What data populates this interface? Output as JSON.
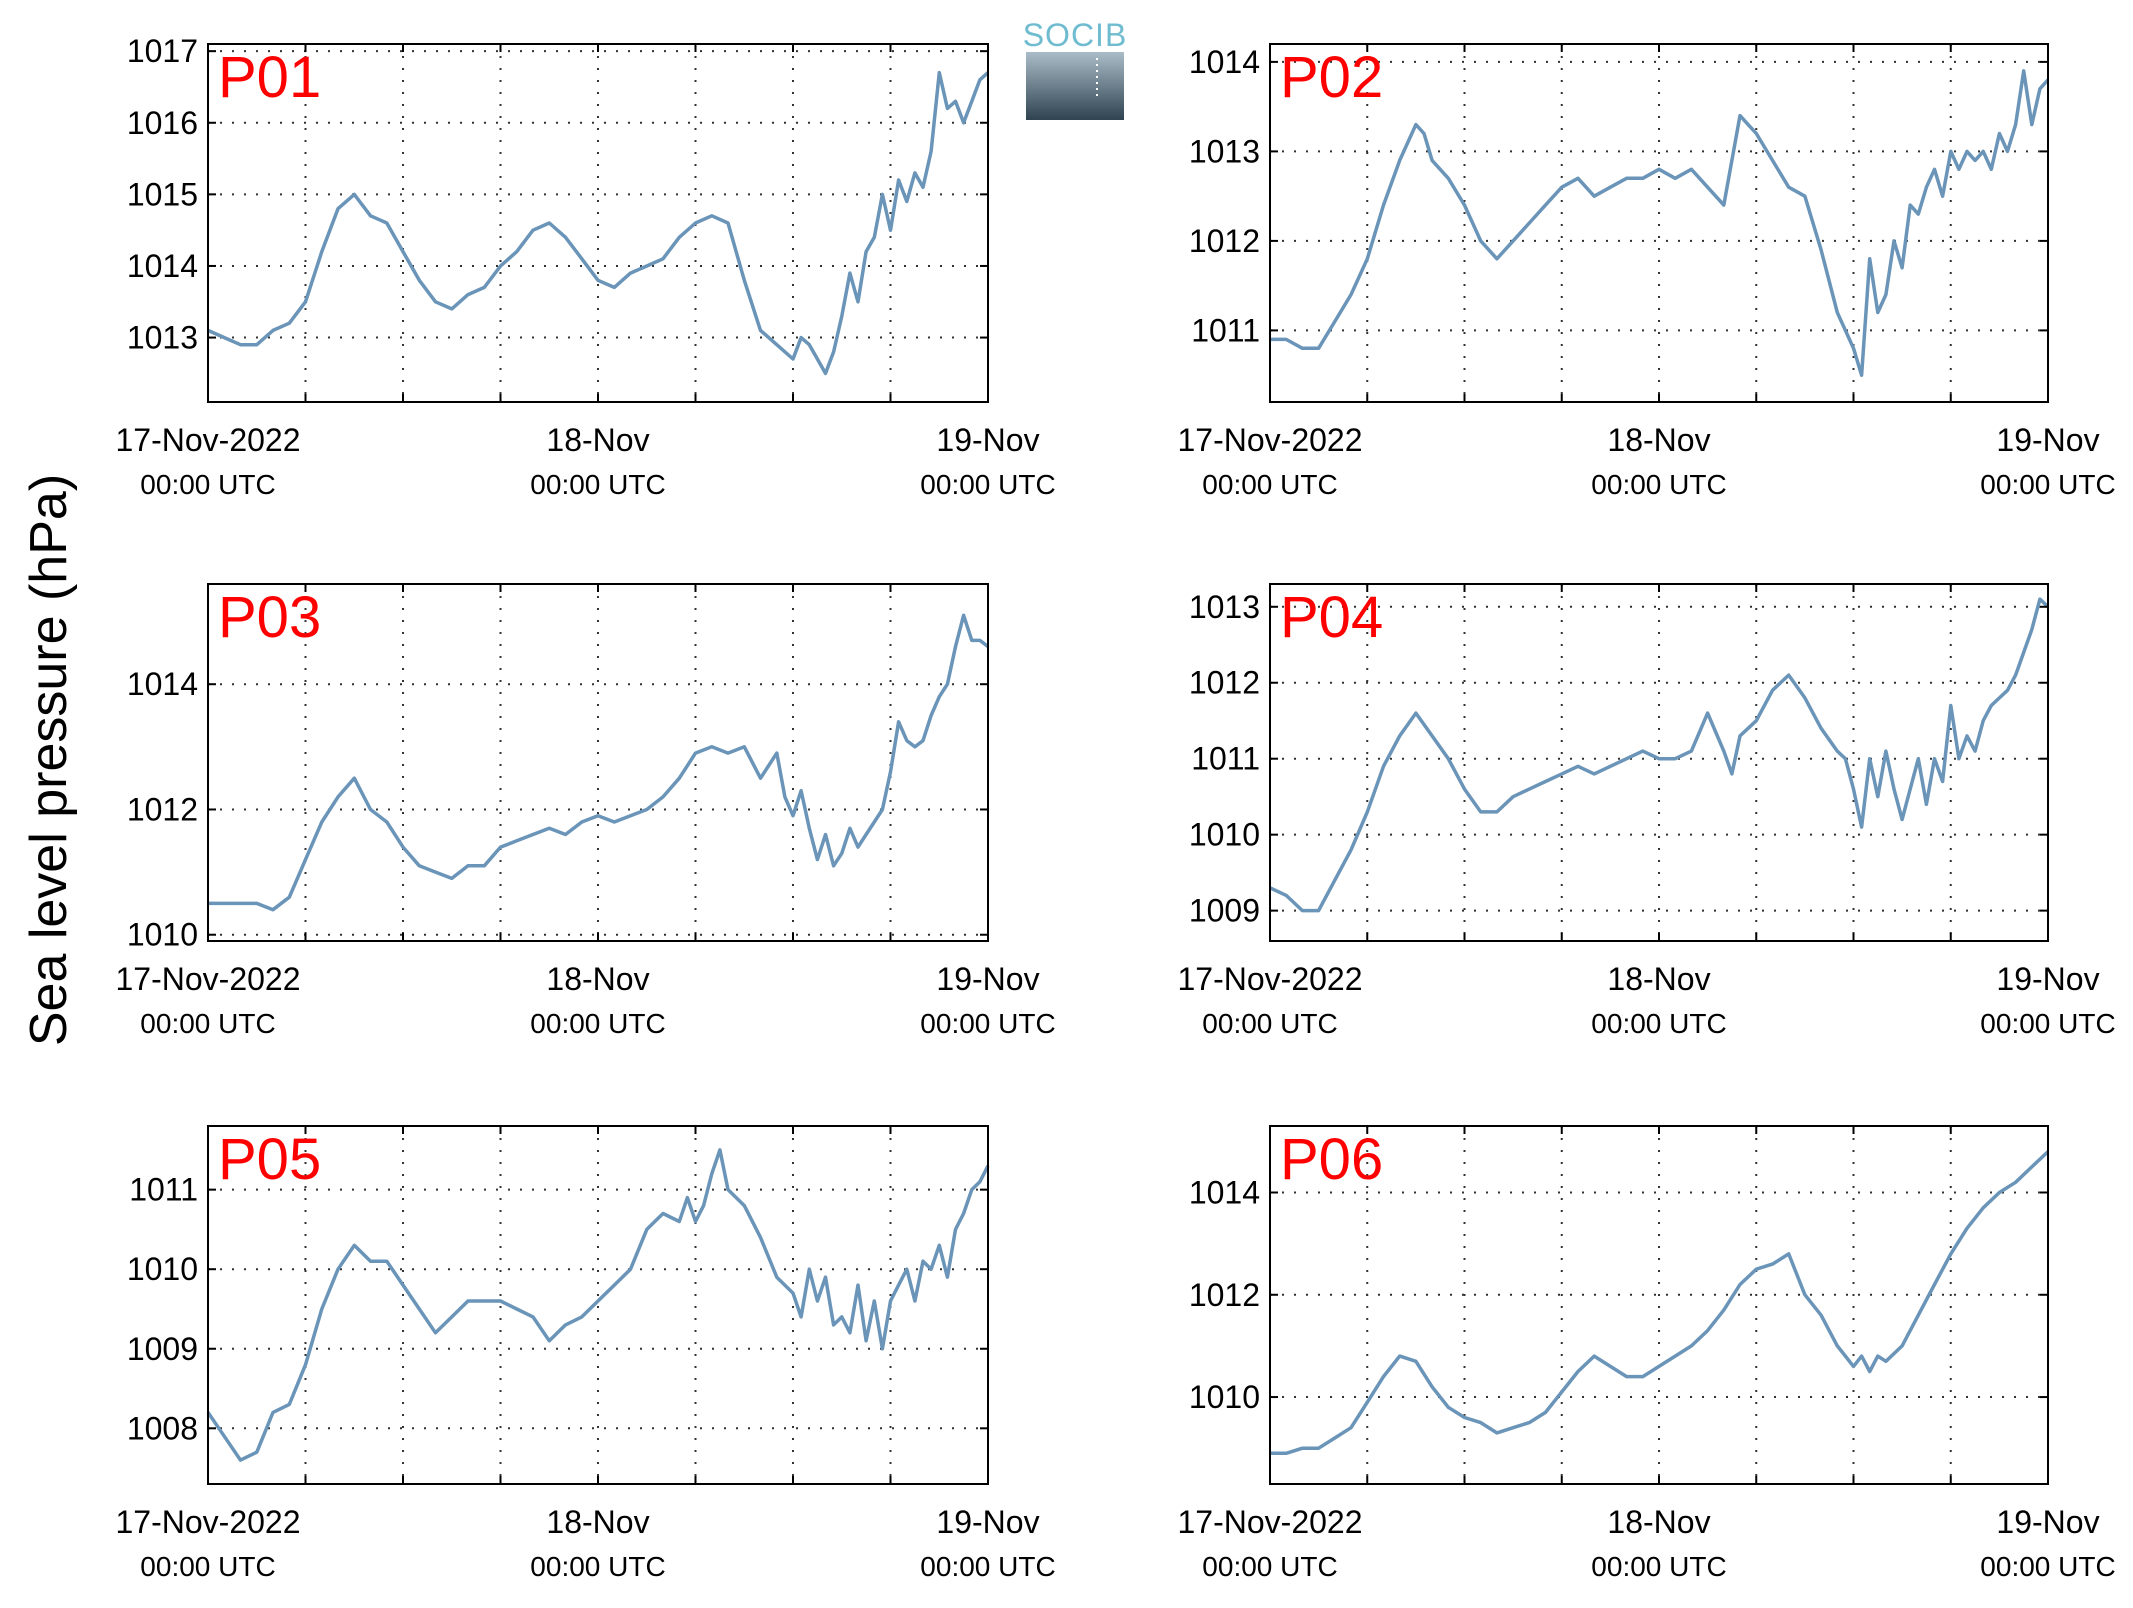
{
  "figure": {
    "ylabel": "Sea level pressure (hPa)",
    "logo_text": "SOCIB",
    "line_color": "#6a94b8",
    "label_color": "#ff0000"
  },
  "chart_data": [
    {
      "type": "line",
      "name": "P01",
      "x_range": [
        "2022-11-17T00:00",
        "2022-11-19T00:00"
      ],
      "x_ticks": [
        {
          "date": "17-Nov-2022",
          "time": "00:00 UTC"
        },
        {
          "date": "18-Nov",
          "time": "00:00 UTC"
        },
        {
          "date": "19-Nov",
          "time": "00:00 UTC"
        }
      ],
      "ylim": [
        1012.1,
        1017.1
      ],
      "yticks": [
        1013,
        1014,
        1015,
        1016,
        1017
      ],
      "grid": true,
      "x_hours": [
        0,
        1,
        2,
        3,
        4,
        5,
        6,
        7,
        8,
        9,
        10,
        11,
        12,
        13,
        14,
        15,
        16,
        17,
        18,
        19,
        20,
        21,
        22,
        23,
        24,
        25,
        26,
        27,
        28,
        29,
        30,
        31,
        32,
        33,
        34,
        35,
        36,
        36.5,
        37,
        37.5,
        38,
        38.5,
        39,
        39.5,
        40,
        40.5,
        41,
        41.5,
        42,
        42.5,
        43,
        43.5,
        44,
        44.5,
        45,
        45.5,
        46,
        46.5,
        47,
        47.5,
        48
      ],
      "y": [
        1013.1,
        1013.0,
        1012.9,
        1012.9,
        1013.1,
        1013.2,
        1013.5,
        1014.2,
        1014.8,
        1015.0,
        1014.7,
        1014.6,
        1014.2,
        1013.8,
        1013.5,
        1013.4,
        1013.6,
        1013.7,
        1014.0,
        1014.2,
        1014.5,
        1014.6,
        1014.4,
        1014.1,
        1013.8,
        1013.7,
        1013.9,
        1014.0,
        1014.1,
        1014.4,
        1014.6,
        1014.7,
        1014.6,
        1013.8,
        1013.1,
        1012.9,
        1012.7,
        1013.0,
        1012.9,
        1012.7,
        1012.5,
        1012.8,
        1013.3,
        1013.9,
        1013.5,
        1014.2,
        1014.4,
        1015.0,
        1014.5,
        1015.2,
        1014.9,
        1015.3,
        1015.1,
        1015.6,
        1016.7,
        1016.2,
        1016.3,
        1016.0,
        1016.3,
        1016.6,
        1016.7
      ]
    },
    {
      "type": "line",
      "name": "P02",
      "x_range": [
        "2022-11-17T00:00",
        "2022-11-19T00:00"
      ],
      "x_ticks": [
        {
          "date": "17-Nov-2022",
          "time": "00:00 UTC"
        },
        {
          "date": "18-Nov",
          "time": "00:00 UTC"
        },
        {
          "date": "19-Nov",
          "time": "00:00 UTC"
        }
      ],
      "ylim": [
        1010.2,
        1014.2
      ],
      "yticks": [
        1011,
        1012,
        1013,
        1014
      ],
      "grid": true,
      "x_hours": [
        0,
        1,
        2,
        3,
        4,
        5,
        6,
        7,
        8,
        9,
        9.5,
        10,
        11,
        12,
        13,
        14,
        15,
        16,
        17,
        18,
        19,
        20,
        21,
        22,
        23,
        24,
        25,
        26,
        27,
        28,
        29,
        29.5,
        30,
        31,
        32,
        33,
        34,
        35,
        36,
        36.5,
        37,
        37.5,
        38,
        38.5,
        39,
        39.5,
        40,
        40.5,
        41,
        41.5,
        42,
        42.5,
        43,
        43.5,
        44,
        44.5,
        45,
        45.5,
        46,
        46.5,
        47,
        47.5,
        48
      ],
      "y": [
        1010.9,
        1010.9,
        1010.8,
        1010.8,
        1011.1,
        1011.4,
        1011.8,
        1012.4,
        1012.9,
        1013.3,
        1013.2,
        1012.9,
        1012.7,
        1012.4,
        1012.0,
        1011.8,
        1012.0,
        1012.2,
        1012.4,
        1012.6,
        1012.7,
        1012.5,
        1012.6,
        1012.7,
        1012.7,
        1012.8,
        1012.7,
        1012.8,
        1012.6,
        1012.4,
        1013.4,
        1013.3,
        1013.2,
        1012.9,
        1012.6,
        1012.5,
        1011.9,
        1011.2,
        1010.8,
        1010.5,
        1011.8,
        1011.2,
        1011.4,
        1012.0,
        1011.7,
        1012.4,
        1012.3,
        1012.6,
        1012.8,
        1012.5,
        1013.0,
        1012.8,
        1013.0,
        1012.9,
        1013.0,
        1012.8,
        1013.2,
        1013.0,
        1013.3,
        1013.9,
        1013.3,
        1013.7,
        1013.8
      ]
    },
    {
      "type": "line",
      "name": "P03",
      "x_range": [
        "2022-11-17T00:00",
        "2022-11-19T00:00"
      ],
      "x_ticks": [
        {
          "date": "17-Nov-2022",
          "time": "00:00 UTC"
        },
        {
          "date": "18-Nov",
          "time": "00:00 UTC"
        },
        {
          "date": "19-Nov",
          "time": "00:00 UTC"
        }
      ],
      "ylim": [
        1009.9,
        1015.6
      ],
      "yticks": [
        1010,
        1012,
        1014
      ],
      "grid": true,
      "x_hours": [
        0,
        1,
        2,
        3,
        4,
        5,
        6,
        7,
        8,
        9,
        10,
        11,
        12,
        13,
        14,
        15,
        16,
        17,
        18,
        19,
        20,
        21,
        22,
        23,
        24,
        25,
        26,
        27,
        28,
        29,
        30,
        31,
        32,
        33,
        34,
        35,
        35.5,
        36,
        36.5,
        37,
        37.5,
        38,
        38.5,
        39,
        39.5,
        40,
        40.5,
        41,
        41.5,
        42,
        42.5,
        43,
        43.5,
        44,
        44.5,
        45,
        45.5,
        46,
        46.5,
        47,
        47.5,
        48
      ],
      "y": [
        1010.5,
        1010.5,
        1010.5,
        1010.5,
        1010.4,
        1010.6,
        1011.2,
        1011.8,
        1012.2,
        1012.5,
        1012.0,
        1011.8,
        1011.4,
        1011.1,
        1011.0,
        1010.9,
        1011.1,
        1011.1,
        1011.4,
        1011.5,
        1011.6,
        1011.7,
        1011.6,
        1011.8,
        1011.9,
        1011.8,
        1011.9,
        1012.0,
        1012.2,
        1012.5,
        1012.9,
        1013.0,
        1012.9,
        1013.0,
        1012.5,
        1012.9,
        1012.2,
        1011.9,
        1012.3,
        1011.7,
        1011.2,
        1011.6,
        1011.1,
        1011.3,
        1011.7,
        1011.4,
        1011.6,
        1011.8,
        1012.0,
        1012.6,
        1013.4,
        1013.1,
        1013.0,
        1013.1,
        1013.5,
        1013.8,
        1014.0,
        1014.6,
        1015.1,
        1014.7,
        1014.7,
        1014.6
      ]
    },
    {
      "type": "line",
      "name": "P04",
      "x_range": [
        "2022-11-17T00:00",
        "2022-11-19T00:00"
      ],
      "x_ticks": [
        {
          "date": "17-Nov-2022",
          "time": "00:00 UTC"
        },
        {
          "date": "18-Nov",
          "time": "00:00 UTC"
        },
        {
          "date": "19-Nov",
          "time": "00:00 UTC"
        }
      ],
      "ylim": [
        1008.6,
        1013.3
      ],
      "yticks": [
        1009,
        1010,
        1011,
        1012,
        1013
      ],
      "grid": true,
      "x_hours": [
        0,
        1,
        2,
        3,
        4,
        5,
        6,
        7,
        8,
        9,
        10,
        11,
        12,
        13,
        14,
        15,
        16,
        17,
        18,
        19,
        20,
        21,
        22,
        23,
        24,
        25,
        26,
        27,
        28,
        28.5,
        29,
        30,
        31,
        32,
        33,
        34,
        35,
        35.5,
        36,
        36.5,
        37,
        37.5,
        38,
        38.5,
        39,
        39.5,
        40,
        40.5,
        41,
        41.5,
        42,
        42.5,
        43,
        43.5,
        44,
        44.5,
        45,
        45.5,
        46,
        46.5,
        47,
        47.5,
        48
      ],
      "y": [
        1009.3,
        1009.2,
        1009.0,
        1009.0,
        1009.4,
        1009.8,
        1010.3,
        1010.9,
        1011.3,
        1011.6,
        1011.3,
        1011.0,
        1010.6,
        1010.3,
        1010.3,
        1010.5,
        1010.6,
        1010.7,
        1010.8,
        1010.9,
        1010.8,
        1010.9,
        1011.0,
        1011.1,
        1011.0,
        1011.0,
        1011.1,
        1011.6,
        1011.1,
        1010.8,
        1011.3,
        1011.5,
        1011.9,
        1012.1,
        1011.8,
        1011.4,
        1011.1,
        1011.0,
        1010.6,
        1010.1,
        1011.0,
        1010.5,
        1011.1,
        1010.6,
        1010.2,
        1010.6,
        1011.0,
        1010.4,
        1011.0,
        1010.7,
        1011.7,
        1011.0,
        1011.3,
        1011.1,
        1011.5,
        1011.7,
        1011.8,
        1011.9,
        1012.1,
        1012.4,
        1012.7,
        1013.1,
        1013.0
      ]
    },
    {
      "type": "line",
      "name": "P05",
      "x_range": [
        "2022-11-17T00:00",
        "2022-11-19T00:00"
      ],
      "x_ticks": [
        {
          "date": "17-Nov-2022",
          "time": "00:00 UTC"
        },
        {
          "date": "18-Nov",
          "time": "00:00 UTC"
        },
        {
          "date": "19-Nov",
          "time": "00:00 UTC"
        }
      ],
      "ylim": [
        1007.3,
        1011.8
      ],
      "yticks": [
        1008,
        1009,
        1010,
        1011
      ],
      "grid": true,
      "x_hours": [
        0,
        1,
        2,
        3,
        4,
        5,
        6,
        7,
        8,
        9,
        10,
        11,
        12,
        13,
        14,
        15,
        16,
        17,
        18,
        19,
        20,
        21,
        22,
        23,
        24,
        25,
        26,
        27,
        28,
        29,
        29.5,
        30,
        30.5,
        31,
        31.5,
        32,
        33,
        34,
        35,
        36,
        36.5,
        37,
        37.5,
        38,
        38.5,
        39,
        39.5,
        40,
        40.5,
        41,
        41.5,
        42,
        42.5,
        43,
        43.5,
        44,
        44.5,
        45,
        45.5,
        46,
        46.5,
        47,
        47.5,
        48
      ],
      "y": [
        1008.2,
        1007.9,
        1007.6,
        1007.7,
        1008.2,
        1008.3,
        1008.8,
        1009.5,
        1010.0,
        1010.3,
        1010.1,
        1010.1,
        1009.8,
        1009.5,
        1009.2,
        1009.4,
        1009.6,
        1009.6,
        1009.6,
        1009.5,
        1009.4,
        1009.1,
        1009.3,
        1009.4,
        1009.6,
        1009.8,
        1010.0,
        1010.5,
        1010.7,
        1010.6,
        1010.9,
        1010.6,
        1010.8,
        1011.2,
        1011.5,
        1011.0,
        1010.8,
        1010.4,
        1009.9,
        1009.7,
        1009.4,
        1010.0,
        1009.6,
        1009.9,
        1009.3,
        1009.4,
        1009.2,
        1009.8,
        1009.1,
        1009.6,
        1009.0,
        1009.6,
        1009.8,
        1010.0,
        1009.6,
        1010.1,
        1010.0,
        1010.3,
        1009.9,
        1010.5,
        1010.7,
        1011.0,
        1011.1,
        1011.3
      ]
    },
    {
      "type": "line",
      "name": "P06",
      "x_range": [
        "2022-11-17T00:00",
        "2022-11-19T00:00"
      ],
      "x_ticks": [
        {
          "date": "17-Nov-2022",
          "time": "00:00 UTC"
        },
        {
          "date": "18-Nov",
          "time": "00:00 UTC"
        },
        {
          "date": "19-Nov",
          "time": "00:00 UTC"
        }
      ],
      "ylim": [
        1008.3,
        1015.3
      ],
      "yticks": [
        1010,
        1012,
        1014
      ],
      "grid": true,
      "x_hours": [
        0,
        1,
        2,
        3,
        4,
        5,
        6,
        7,
        8,
        9,
        10,
        11,
        12,
        13,
        14,
        15,
        16,
        17,
        18,
        19,
        20,
        21,
        22,
        23,
        24,
        25,
        26,
        27,
        28,
        29,
        30,
        31,
        32,
        33,
        34,
        35,
        35.5,
        36,
        36.5,
        37,
        37.5,
        38,
        39,
        40,
        41,
        42,
        43,
        44,
        45,
        46,
        47,
        48
      ],
      "y": [
        1008.9,
        1008.9,
        1009.0,
        1009.0,
        1009.2,
        1009.4,
        1009.9,
        1010.4,
        1010.8,
        1010.7,
        1010.2,
        1009.8,
        1009.6,
        1009.5,
        1009.3,
        1009.4,
        1009.5,
        1009.7,
        1010.1,
        1010.5,
        1010.8,
        1010.6,
        1010.4,
        1010.4,
        1010.6,
        1010.8,
        1011.0,
        1011.3,
        1011.7,
        1012.2,
        1012.5,
        1012.6,
        1012.8,
        1012.0,
        1011.6,
        1011.0,
        1010.8,
        1010.6,
        1010.8,
        1010.5,
        1010.8,
        1010.7,
        1011.0,
        1011.6,
        1012.2,
        1012.8,
        1013.3,
        1013.7,
        1014.0,
        1014.2,
        1014.5,
        1014.8
      ]
    }
  ]
}
